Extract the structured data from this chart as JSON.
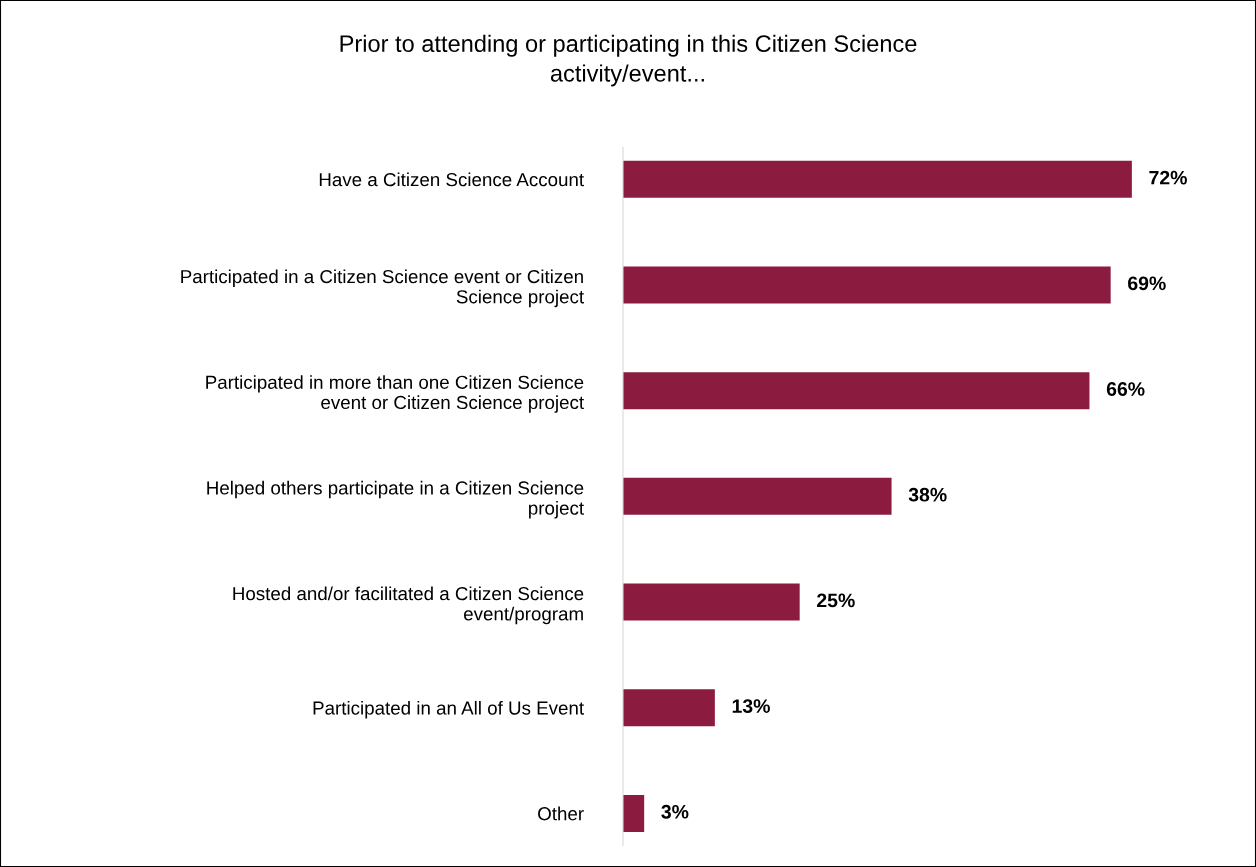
{
  "chart_data": {
    "type": "bar",
    "orientation": "horizontal",
    "title": "Prior to attending or participating in this Citizen Science\nactivity/event...",
    "categories": [
      "Have a Citizen Science Account",
      "Participated in a Citizen Science event or Citizen\nScience project",
      "Participated in more than one Citizen Science\nevent or Citizen Science project",
      "Helped others participate in a Citizen Science\nproject",
      "Hosted and/or facilitated a Citizen Science\nevent/program",
      "Participated in an All of Us Event",
      "Other"
    ],
    "values": [
      72,
      69,
      66,
      38,
      25,
      13,
      3
    ],
    "value_labels": [
      "72%",
      "69%",
      "66%",
      "38%",
      "25%",
      "13%",
      "3%"
    ],
    "color": "#8b1c40",
    "grid": false,
    "legend": false
  }
}
